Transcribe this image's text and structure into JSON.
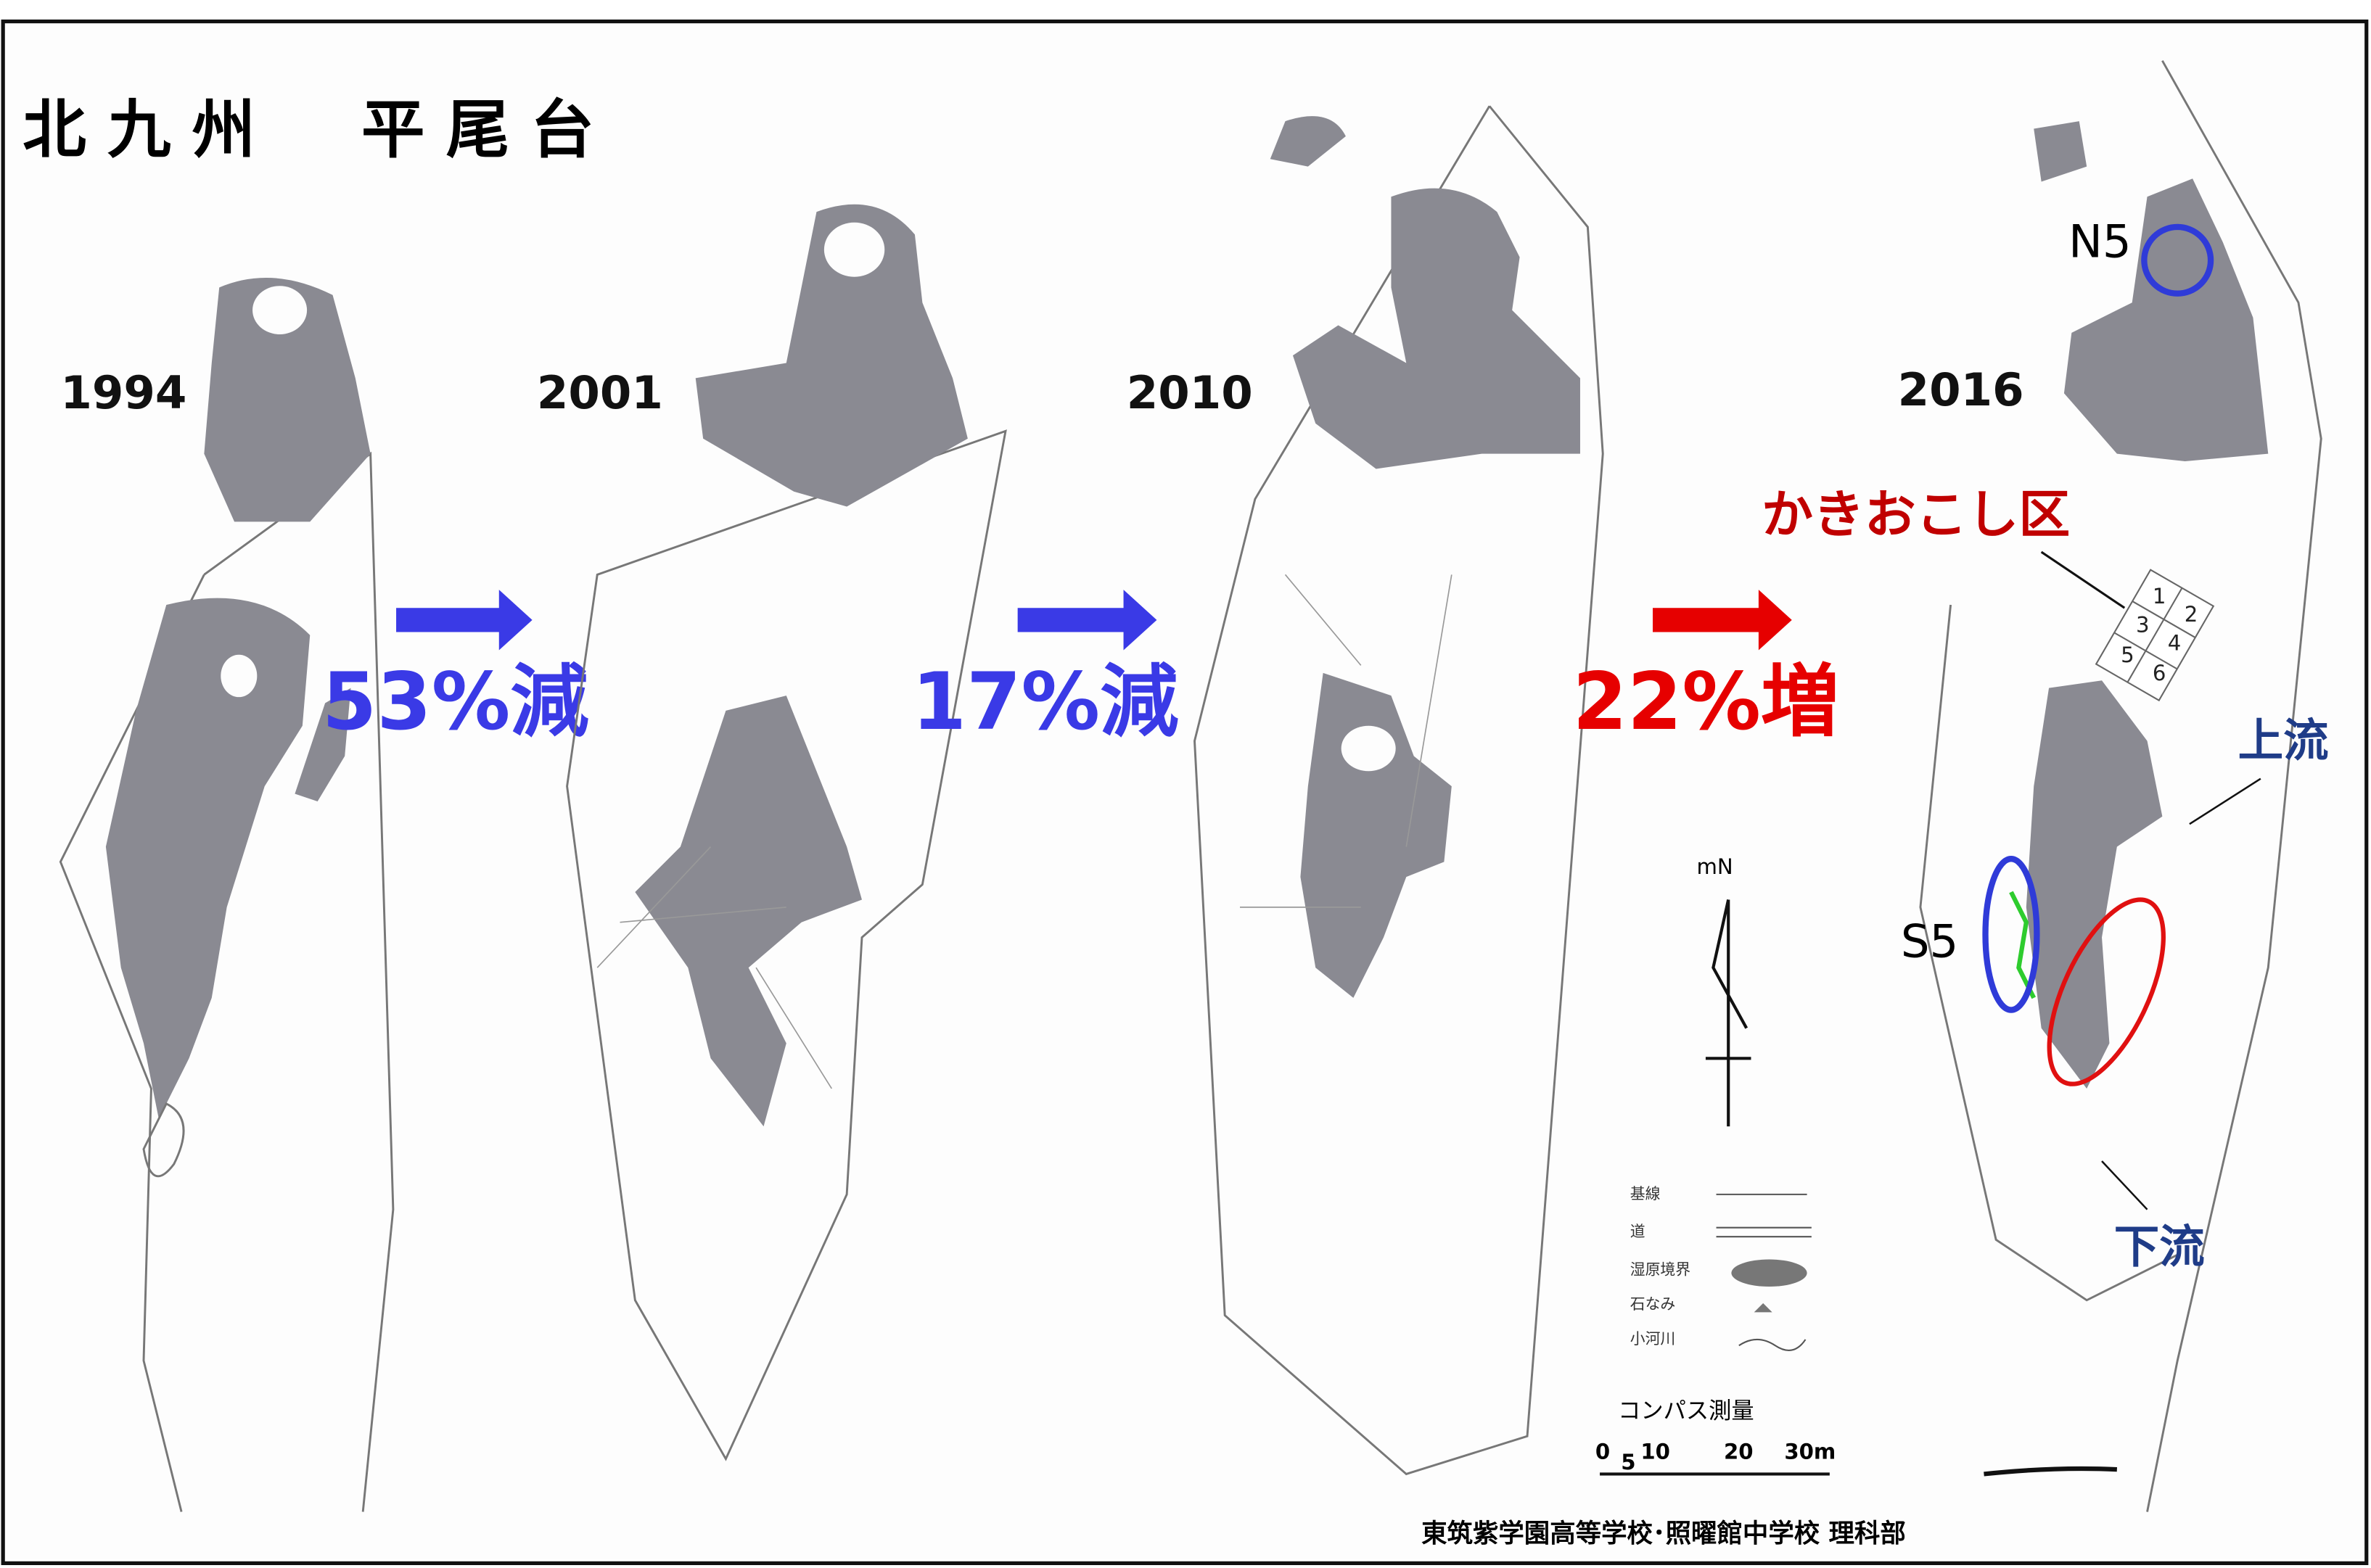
{
  "title": "北九州　平尾台",
  "panels": [
    {
      "year": "1994"
    },
    {
      "year": "2001"
    },
    {
      "year": "2010"
    },
    {
      "year": "2016"
    }
  ],
  "changes": [
    "53%減",
    "17%減",
    "22%増"
  ],
  "annotations": {
    "plot_label": "かきおこし区",
    "plot_numbers": [
      "1",
      "2",
      "3",
      "4",
      "5",
      "6"
    ],
    "north_site": "N5",
    "south_site": "S5",
    "upstream": "上流",
    "downstream": "下流"
  },
  "legend": {
    "north": "mN",
    "items": [
      "基線",
      "道",
      "湿原境界",
      "石なみ",
      "小河川"
    ],
    "method": "コンパス測量",
    "scale": [
      "0",
      "5",
      "10",
      "20",
      "30m"
    ]
  },
  "footer": "東筑紫学園高等学校･照曜館中学校 理科部"
}
